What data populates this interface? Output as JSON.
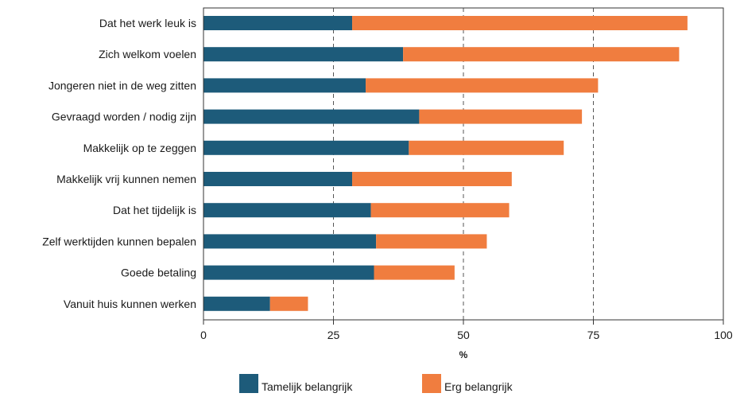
{
  "chart_data": {
    "type": "bar",
    "orientation": "horizontal",
    "stacked": true,
    "categories": [
      "Dat het werk leuk is",
      "Zich welkom voelen",
      "Jongeren niet in de weg zitten",
      "Gevraagd worden / nodig zijn",
      "Makkelijk op te zeggen",
      "Makkelijk vrij kunnen nemen",
      "Dat het tijdelijk is",
      "Zelf werktijden kunnen bepalen",
      "Goede betaling",
      "Vanuit huis kunnen werken"
    ],
    "series": [
      {
        "name": "Tamelijk belangrijk",
        "color": "#1d5b7a",
        "values": [
          28.6,
          38.4,
          31.2,
          41.5,
          39.5,
          28.6,
          32.2,
          33.2,
          32.8,
          12.8
        ]
      },
      {
        "name": "Erg belangrijk",
        "color": "#f07d3f",
        "values": [
          64.5,
          53.1,
          44.7,
          31.3,
          29.8,
          30.7,
          26.6,
          21.3,
          15.5,
          7.3
        ]
      }
    ],
    "xlabel": "%",
    "xlim": [
      0,
      100
    ],
    "xticks": [
      0,
      25,
      50,
      75,
      100
    ],
    "gridlines": "dashed vertical at 25, 50, 75",
    "legend_position": "bottom"
  }
}
